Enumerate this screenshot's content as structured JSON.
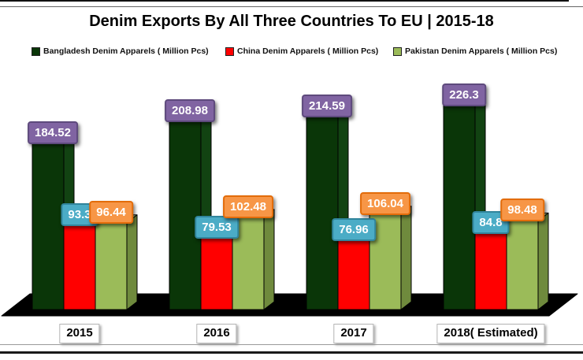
{
  "title": "Denim Exports By All Three Countries  To EU | 2015-18",
  "legend": {
    "items": [
      {
        "label": "Bangladesh  Denim Apparels ( Million Pcs)",
        "marker_color": "#0A3608"
      },
      {
        "label": "China  Denim Apparels ( Million Pcs)",
        "marker_color": "#FF0000"
      },
      {
        "label": "Pakistan  Denim Apparels ( Million Pcs)",
        "marker_color": "#9BBB59"
      }
    ]
  },
  "chart_data": {
    "type": "bar",
    "style": "3d-clustered",
    "title": "Denim Exports By All Three Countries  To EU | 2015-18",
    "xlabel": "",
    "ylabel": "Denim Apparels ( Million Pcs)",
    "ylim": [
      0,
      240
    ],
    "grid": false,
    "legend_position": "top",
    "data_labels": true,
    "categories": [
      "2015",
      "2016",
      "2017",
      "2018( Estimated)"
    ],
    "series": [
      {
        "name": "Bangladesh  Denim Apparels ( Million Pcs)",
        "values": [
          184.52,
          208.98,
          214.59,
          226.3
        ],
        "bar_color": "#0A3608",
        "label_bg": "#8064A2",
        "label_border": "#5E4A7D"
      },
      {
        "name": "China  Denim Apparels ( Million Pcs)",
        "values": [
          93.3,
          79.53,
          76.96,
          84.8
        ],
        "bar_color": "#FF0000",
        "label_bg": "#4BACC6",
        "label_border": "#31859C"
      },
      {
        "name": "Pakistan  Denim Apparels ( Million Pcs)",
        "values": [
          96.44,
          102.48,
          106.04,
          98.48
        ],
        "bar_color": "#9BBB59",
        "label_bg": "#F79646",
        "label_border": "#E36C0A"
      }
    ]
  }
}
